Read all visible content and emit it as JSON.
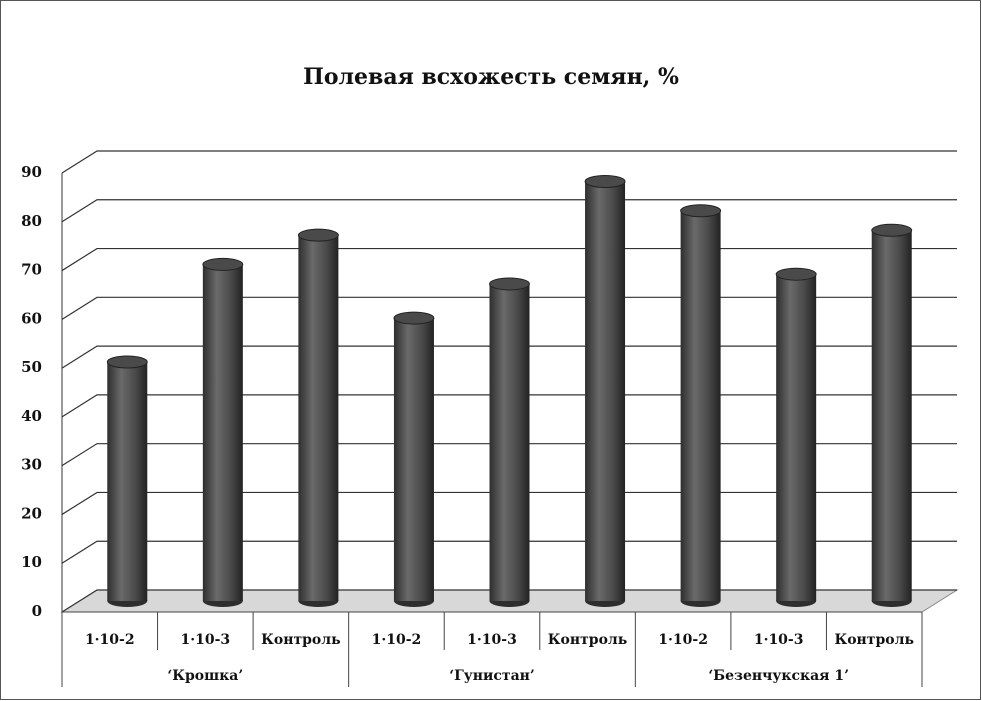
{
  "chart_data": {
    "type": "bar",
    "title": "Полевая всхожесть семян, %",
    "groups": [
      {
        "name": "‘Крошка’",
        "categories": [
          "1·10-2",
          "1·10-3",
          "Контроль"
        ],
        "values": [
          49,
          69,
          75
        ]
      },
      {
        "name": "‘Гунистан’",
        "categories": [
          "1·10-2",
          "1·10-3",
          "Контроль"
        ],
        "values": [
          58,
          65,
          86
        ]
      },
      {
        "name": "‘Безенчукская 1’",
        "categories": [
          "1·10-2",
          "1·10-3",
          "Контроль"
        ],
        "values": [
          80,
          67,
          76
        ]
      }
    ],
    "color": "#4a4a4a",
    "ylim": [
      0,
      90
    ],
    "yticks": [
      0,
      10,
      20,
      30,
      40,
      50,
      60,
      70,
      80,
      90
    ],
    "grid": true
  }
}
